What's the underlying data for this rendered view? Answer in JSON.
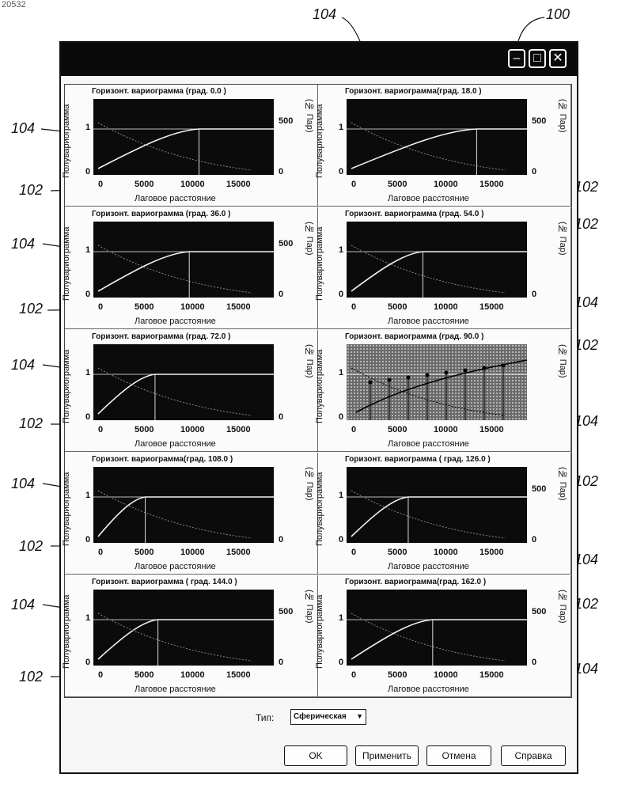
{
  "doc_number": "20532",
  "callouts": {
    "window": "100",
    "curve": "102",
    "pairs": "104"
  },
  "window": {
    "min_icon": "–",
    "max_icon": "□",
    "close_icon": "✕"
  },
  "panels": [
    {
      "title": "Горизонт. вариограмма (град. 0.0 )",
      "ylabel": "Полувариограмма",
      "y2label": "(№ Пар)",
      "xlabel": "Лаговое расстояние",
      "yticks": [
        "1",
        "0"
      ],
      "y2ticks": [
        "500",
        "0"
      ],
      "xticks": [
        "0",
        "5000",
        "10000",
        "15000"
      ]
    },
    {
      "title": "Горизонт. вариограмма(град. 18.0 )",
      "ylabel": "Полувариограмма",
      "y2label": "(№ Пар)",
      "xlabel": "Лаговое расстояние",
      "yticks": [
        "1",
        "0"
      ],
      "y2ticks": [
        "500",
        "0"
      ],
      "xticks": [
        "0",
        "5000",
        "10000",
        "15000"
      ]
    },
    {
      "title": "Горизонт. вариограмма (град. 36.0 )",
      "ylabel": "Полувариограмма",
      "y2label": "(№ Пар)",
      "xlabel": "Лаговое расстояние",
      "yticks": [
        "1",
        "0"
      ],
      "y2ticks": [
        "500",
        "0"
      ],
      "xticks": [
        "0",
        "5000",
        "10000",
        "15000"
      ]
    },
    {
      "title": "Горизонт. вариограмма (град. 54.0 )",
      "ylabel": "Полувариограмма",
      "y2label": "(№ Пар)",
      "xlabel": "Лаговое расстояние",
      "yticks": [
        "1",
        "0"
      ],
      "y2ticks": [
        "",
        "0"
      ],
      "xticks": [
        "0",
        "5000",
        "10000",
        "15000"
      ]
    },
    {
      "title": "Горизонт. вариограмма (град. 72.0 )",
      "ylabel": "Полувариограмма",
      "y2label": "(№ Пар)",
      "xlabel": "Лаговое расстояние",
      "yticks": [
        "1",
        "0"
      ],
      "y2ticks": [
        "",
        "0"
      ],
      "xticks": [
        "0",
        "5000",
        "10000",
        "15000"
      ]
    },
    {
      "title": "Горизонт. вариограмма (град. 90.0 )",
      "ylabel": "Полувариограмма",
      "y2label": "(№ Пар)",
      "xlabel": "Лаговое расстояние",
      "yticks": [
        "1",
        "0"
      ],
      "y2ticks": [
        "",
        ""
      ],
      "xticks": [
        "0",
        "5000",
        "10000",
        "15000"
      ]
    },
    {
      "title": "Горизонт. вариограмма(град. 108.0 )",
      "ylabel": "Полувариограмма",
      "y2label": "(№ Пар)",
      "xlabel": "Лаговое расстояние",
      "yticks": [
        "1",
        "0"
      ],
      "y2ticks": [
        "",
        "0"
      ],
      "xticks": [
        "0",
        "5000",
        "10000",
        "15000"
      ]
    },
    {
      "title": "Горизонт. вариограмма ( град. 126.0 )",
      "ylabel": "Полувариограмма",
      "y2label": "(№ Пар)",
      "xlabel": "Лаговое расстояние",
      "yticks": [
        "1",
        "0"
      ],
      "y2ticks": [
        "500",
        "0"
      ],
      "xticks": [
        "0",
        "5000",
        "10000",
        "15000"
      ]
    },
    {
      "title": "Горизонт. вариограмма ( град. 144.0 )",
      "ylabel": "Полувариограмма",
      "y2label": "(№ Пар)",
      "xlabel": "Лаговое расстояние",
      "yticks": [
        "1",
        "0"
      ],
      "y2ticks": [
        "500",
        "0"
      ],
      "xticks": [
        "0",
        "5000",
        "10000",
        "15000"
      ]
    },
    {
      "title": "Горизонт. вариограмма(град. 162.0 )",
      "ylabel": "Полувариограмма",
      "y2label": "(№ Пар)",
      "xlabel": "Лаговое расстояние",
      "yticks": [
        "1",
        "0"
      ],
      "y2ticks": [
        "500",
        "0"
      ],
      "xticks": [
        "0",
        "5000",
        "10000",
        "15000"
      ]
    }
  ],
  "type_control": {
    "label": "Тип:",
    "value": "Сферическая"
  },
  "buttons": {
    "ok": "OK",
    "apply": "Применить",
    "cancel": "Отмена",
    "help": "Справка"
  }
}
